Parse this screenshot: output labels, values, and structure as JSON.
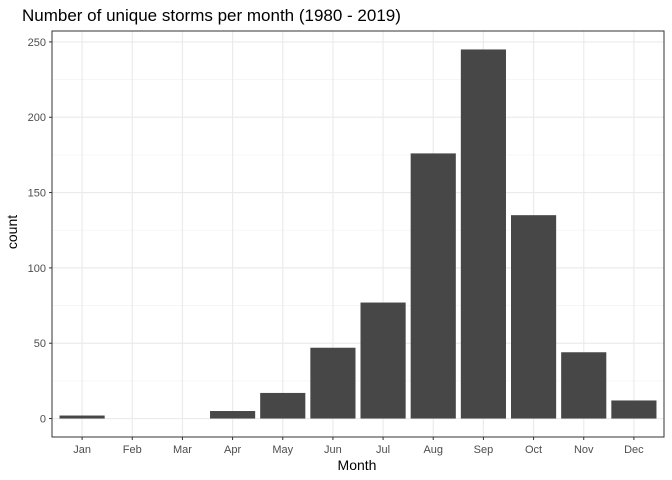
{
  "chart_data": {
    "type": "bar",
    "title": "Number of unique storms per month (1980 - 2019)",
    "xlabel": "Month",
    "ylabel": "count",
    "categories": [
      "Jan",
      "Feb",
      "Mar",
      "Apr",
      "May",
      "Jun",
      "Jul",
      "Aug",
      "Sep",
      "Oct",
      "Nov",
      "Dec"
    ],
    "values": [
      2,
      0,
      0,
      5,
      17,
      47,
      77,
      176,
      245,
      135,
      44,
      12
    ],
    "ylim": [
      -12.25,
      257.25
    ],
    "yticks": [
      0,
      50,
      100,
      150,
      200,
      250
    ],
    "grid": true,
    "bar_color": "#474747",
    "panel_border_color": "#333333",
    "grid_major_color": "#ebebeb",
    "grid_minor_color": "#f4f4f4"
  }
}
